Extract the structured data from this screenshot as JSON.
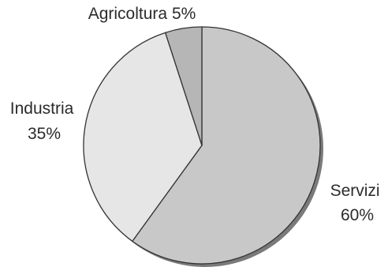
{
  "chart_data": {
    "type": "pie",
    "slices": [
      {
        "label": "Servizi",
        "value": 60,
        "value_label": "60%",
        "color": "#c8c8c8"
      },
      {
        "label": "Industria",
        "value": 35,
        "value_label": "35%",
        "color": "#e6e6e6"
      },
      {
        "label": "Agricoltura",
        "value": 5,
        "value_label": "5%",
        "color": "#b6b6b6"
      }
    ],
    "outline_color": "#333333",
    "shadow_color": "#7a7a7a"
  }
}
